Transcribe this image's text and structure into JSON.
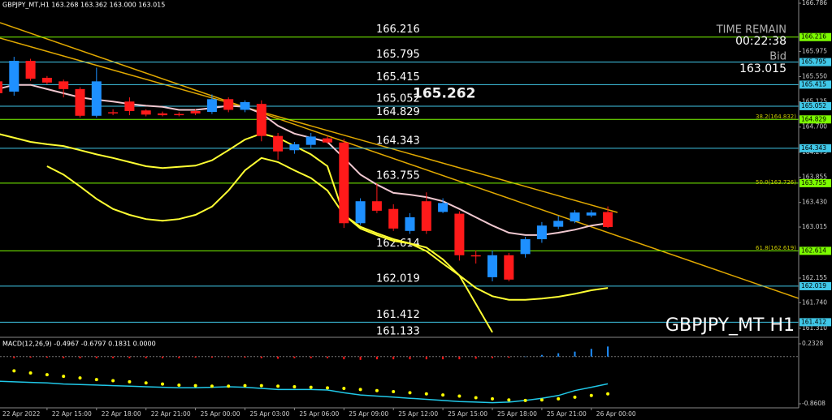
{
  "chart_data": {
    "type": "candlestick",
    "title": "GBPJPY_MT H1",
    "header": "GBPJPY_MT,H1  163.268 163.362 163.000 163.015",
    "categories": [
      "22 Apr 2022",
      null,
      null,
      "22 Apr 15:00",
      null,
      null,
      "22 Apr 18:00",
      null,
      null,
      "22 Apr 21:00",
      null,
      null,
      "25 Apr 00:00",
      null,
      null,
      "25 Apr 03:00",
      null,
      null,
      "25 Apr 06:00",
      null,
      null,
      "25 Apr 09:00",
      null,
      null,
      "25 Apr 12:00",
      null,
      null,
      "25 Apr 15:00",
      null,
      null,
      "25 Apr 18:00",
      null,
      null,
      "25 Apr 21:00",
      null,
      null,
      "26 Apr 00:00",
      null
    ],
    "open": [
      165.47,
      165.297,
      165.816,
      165.53,
      165.47,
      165.34,
      164.89,
      164.95,
      165.13,
      164.98,
      164.93,
      164.92,
      164.97,
      164.955,
      165.17,
      164.99,
      165.09,
      164.55,
      164.31,
      164.4,
      164.51,
      164.44,
      163.08,
      163.45,
      163.32,
      162.95,
      163.45,
      163.27,
      163.24,
      162.54,
      162.17,
      162.54,
      162.56,
      162.81,
      163.02,
      163.11,
      163.21,
      163.268
    ],
    "high": [
      165.6,
      165.884,
      165.85,
      165.56,
      165.5,
      165.37,
      165.7,
      165.0,
      165.2,
      165.0,
      164.96,
      164.95,
      165.0,
      165.25,
      165.2,
      165.15,
      165.15,
      164.6,
      164.45,
      164.6,
      164.55,
      164.5,
      163.5,
      163.75,
      163.4,
      163.25,
      163.6,
      163.5,
      163.28,
      162.62,
      162.62,
      162.58,
      162.85,
      163.1,
      163.2,
      163.3,
      163.3,
      163.362
    ],
    "low": [
      165.2,
      165.229,
      165.48,
      165.42,
      165.2,
      164.86,
      164.86,
      164.9,
      164.9,
      164.88,
      164.88,
      164.88,
      164.9,
      164.92,
      164.95,
      164.95,
      164.46,
      164.15,
      164.25,
      164.35,
      164.42,
      163.0,
      163.05,
      163.25,
      162.95,
      162.9,
      162.9,
      163.25,
      162.45,
      162.4,
      162.1,
      162.1,
      162.5,
      162.75,
      162.98,
      163.08,
      163.18,
      163.0
    ],
    "close": [
      165.27,
      165.816,
      165.515,
      165.45,
      165.34,
      164.89,
      165.47,
      164.93,
      164.97,
      164.91,
      164.9,
      164.9,
      164.93,
      165.17,
      164.99,
      165.12,
      164.55,
      164.29,
      164.41,
      164.54,
      164.44,
      163.08,
      163.45,
      163.29,
      162.99,
      163.18,
      162.95,
      163.42,
      162.54,
      162.52,
      162.54,
      162.13,
      162.81,
      163.04,
      163.12,
      163.26,
      163.26,
      163.015
    ],
    "up_color": "#1e90ff",
    "down_color": "#ff1a1a",
    "ylim": [
      161.171,
      166.841
    ],
    "yticks": [
      166.786,
      165.975,
      {
        "value": 165.55,
        "label": "165.550"
      },
      165.125,
      {
        "value": 164.7,
        "label": "164.700"
      },
      164.275,
      163.855,
      {
        "value": 163.43,
        "label": "163.430"
      },
      163.015,
      162.155,
      {
        "value": 161.74,
        "label": "161.740"
      },
      {
        "value": 161.31,
        "label": "161.310"
      }
    ],
    "levels": [
      166.216,
      165.795,
      165.415,
      165.052,
      164.829,
      164.343,
      163.755,
      162.614,
      162.019,
      161.412
    ],
    "level_colors": [
      "#7cfc00",
      "#40c8e8",
      "#40c8e8",
      "#40c8e8",
      "#7cfc00",
      "#40c8e8",
      "#7cfc00",
      "#7cfc00",
      "#40c8e8",
      "#40c8e8"
    ],
    "price_labels": [
      161.133
    ],
    "marker_price": 165.262,
    "fib_labels": [
      {
        "value": 164.832,
        "label": "38.2(164.832)"
      },
      {
        "value": 163.726,
        "label": "50.0(163.726)"
      },
      {
        "value": 162.619,
        "label": "61.8(162.619)"
      }
    ],
    "overlays": [
      {
        "color": "#ffff33",
        "values": [
          164.59,
          164.52,
          164.45,
          164.41,
          164.38,
          164.31,
          164.24,
          164.18,
          164.11,
          164.04,
          164.01,
          164.03,
          164.05,
          164.14,
          164.31,
          164.49,
          164.59,
          164.52,
          164.38,
          164.24,
          164.04,
          163.22,
          163.02,
          162.91,
          162.81,
          162.74,
          162.61,
          162.4,
          162.2,
          161.99,
          161.85,
          161.79,
          161.79,
          161.81,
          161.84,
          161.89,
          161.95,
          161.99
        ]
      },
      {
        "color": "#ffff33",
        "values": [
          null,
          null,
          null,
          164.04,
          163.9,
          163.7,
          163.49,
          163.32,
          163.22,
          163.15,
          163.12,
          163.15,
          163.22,
          163.36,
          163.63,
          163.97,
          164.18,
          164.11,
          163.97,
          163.84,
          163.63,
          163.22,
          162.99,
          162.88,
          162.78,
          162.74,
          162.67,
          162.47,
          162.2,
          161.72,
          161.24,
          null,
          null,
          null,
          null,
          null,
          null,
          null
        ]
      },
      {
        "color": "#f0c8d0",
        "values": [
          165.34,
          165.41,
          165.41,
          165.34,
          165.27,
          165.2,
          165.16,
          165.13,
          165.09,
          165.06,
          165.04,
          164.99,
          164.99,
          165.02,
          165.06,
          165.04,
          164.93,
          164.72,
          164.59,
          164.52,
          164.45,
          164.18,
          163.9,
          163.73,
          163.59,
          163.56,
          163.52,
          163.45,
          163.32,
          163.18,
          163.04,
          162.92,
          162.88,
          162.88,
          162.92,
          162.97,
          163.04,
          163.08
        ]
      }
    ],
    "timer": {
      "title": "TIME REMAIN",
      "time": "00:22:38",
      "bid_label": "Bid",
      "bid": 163.015
    },
    "macd": {
      "title": "MACD(12,26,9) -0.4967 -0.6797 0.1831 0.0000",
      "ylim": [
        -0.9347,
        0.3362
      ],
      "yticks": [
        0.2328,
        -0.8608
      ],
      "histogram": [
        -0.03,
        -0.03,
        -0.02,
        -0.02,
        -0.03,
        -0.03,
        -0.03,
        -0.03,
        -0.03,
        -0.03,
        -0.03,
        -0.03,
        -0.02,
        -0.02,
        -0.01,
        -0.02,
        -0.03,
        -0.04,
        -0.03,
        -0.03,
        -0.03,
        -0.05,
        -0.06,
        -0.05,
        -0.05,
        -0.05,
        -0.05,
        -0.05,
        -0.05,
        -0.04,
        -0.03,
        -0.02,
        0.0,
        0.03,
        0.06,
        0.09,
        0.14,
        0.1831
      ],
      "main": [
        -0.45,
        -0.46,
        -0.47,
        -0.48,
        -0.5,
        -0.51,
        -0.52,
        -0.53,
        -0.54,
        -0.55,
        -0.56,
        -0.57,
        -0.57,
        -0.56,
        -0.55,
        -0.56,
        -0.58,
        -0.6,
        -0.6,
        -0.6,
        -0.61,
        -0.66,
        -0.7,
        -0.72,
        -0.74,
        -0.76,
        -0.78,
        -0.8,
        -0.82,
        -0.83,
        -0.84,
        -0.83,
        -0.8,
        -0.76,
        -0.71,
        -0.62,
        -0.56,
        -0.4967
      ],
      "signal": [
        -0.23,
        -0.26,
        -0.3,
        -0.33,
        -0.36,
        -0.39,
        -0.42,
        -0.44,
        -0.46,
        -0.48,
        -0.5,
        -0.52,
        -0.53,
        -0.54,
        -0.54,
        -0.53,
        -0.53,
        -0.54,
        -0.55,
        -0.56,
        -0.57,
        -0.58,
        -0.6,
        -0.62,
        -0.64,
        -0.66,
        -0.68,
        -0.7,
        -0.72,
        -0.75,
        -0.77,
        -0.79,
        -0.8,
        -0.79,
        -0.77,
        -0.74,
        -0.71,
        -0.6797
      ],
      "main_color": "#20c8e8",
      "signal_color": "#ffff00",
      "up_color": "#1e90ff",
      "down_color": "#ff1a1a"
    }
  }
}
